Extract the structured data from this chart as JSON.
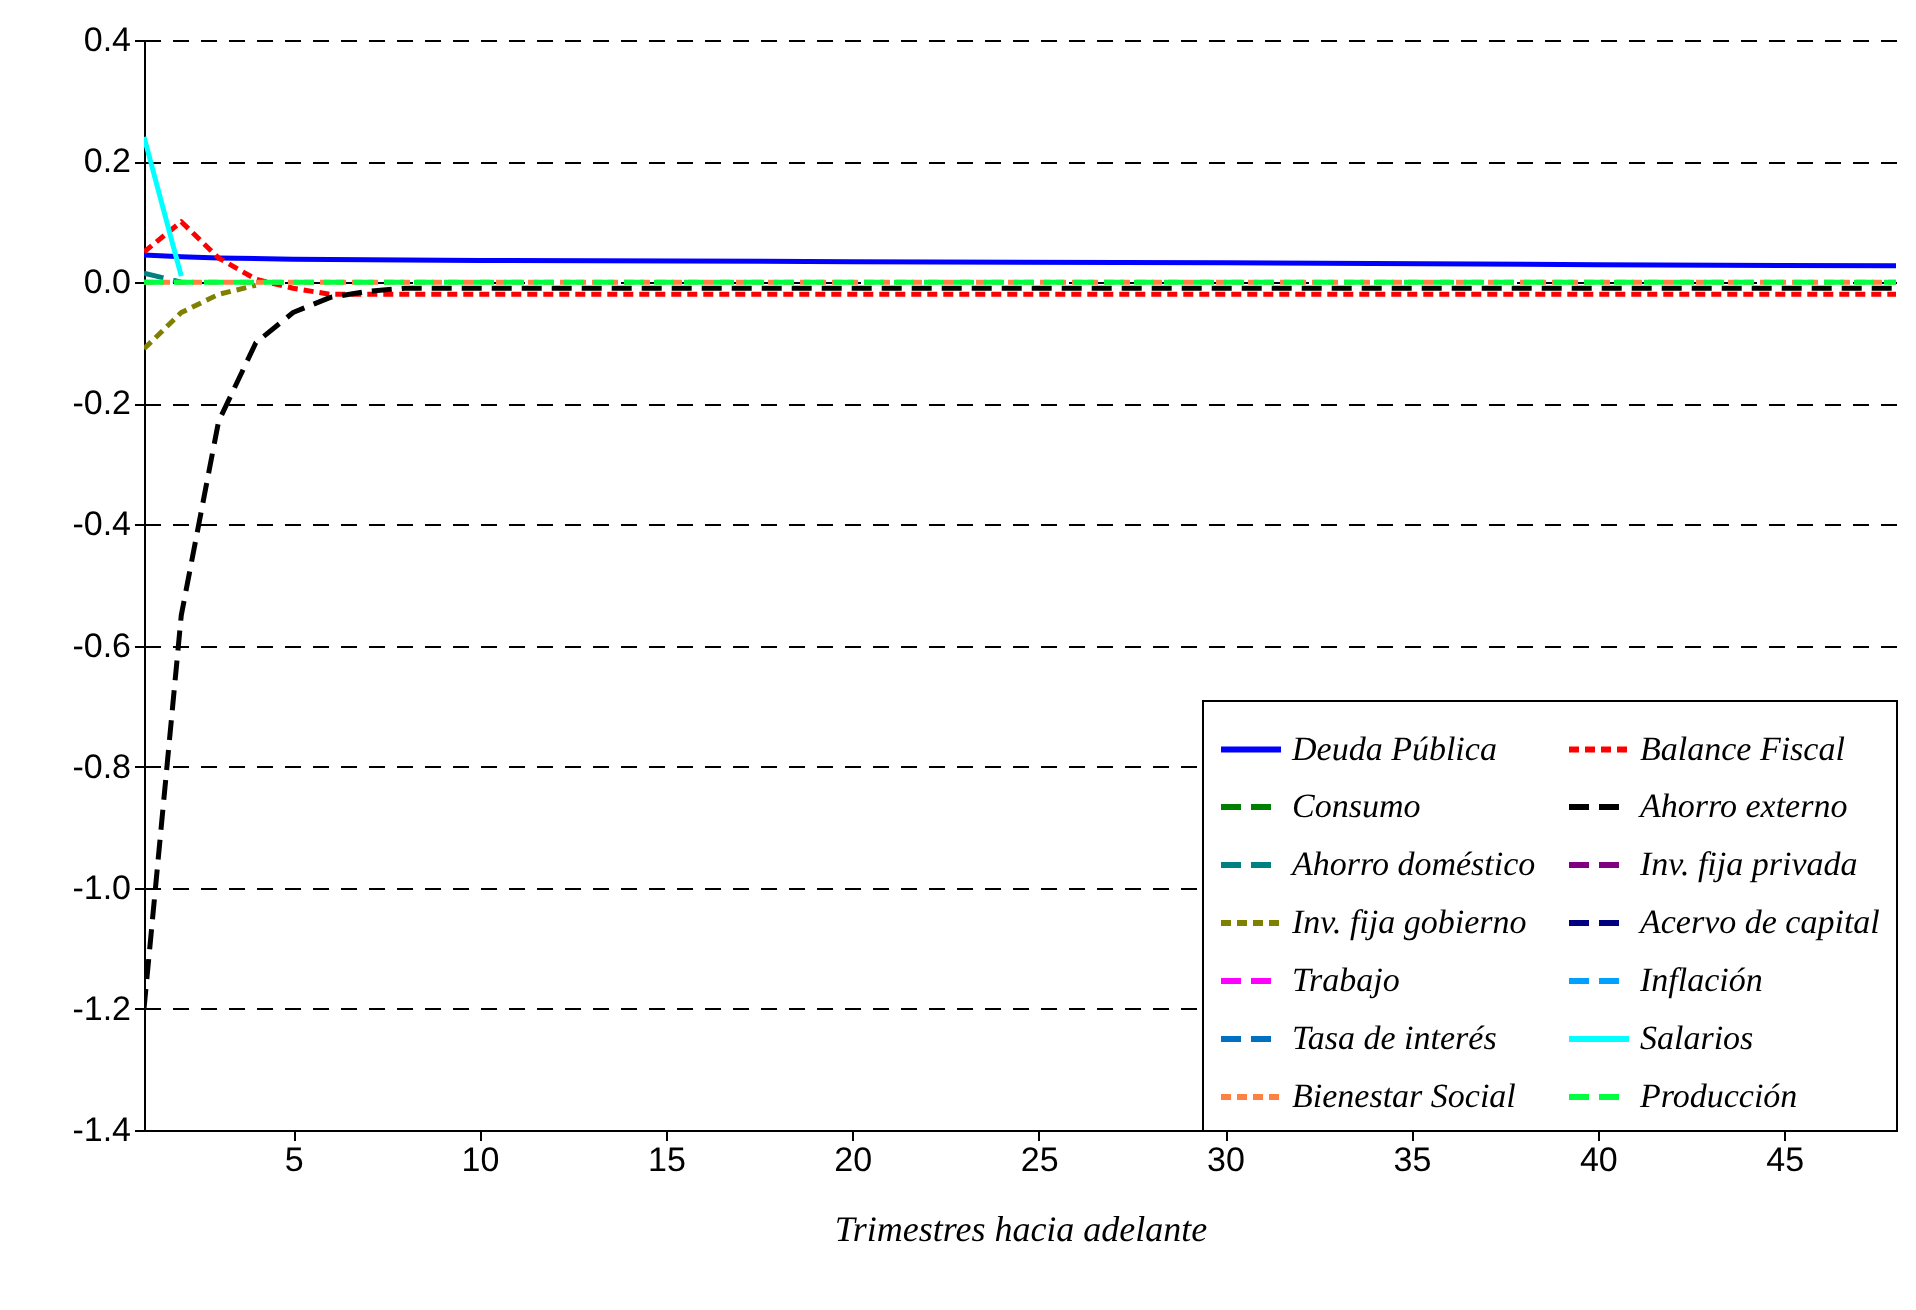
{
  "chart_data": {
    "type": "line",
    "xlabel": "Trimestres hacia adelante",
    "xlim": [
      1,
      48
    ],
    "xticks": [
      5,
      10,
      15,
      20,
      25,
      30,
      35,
      40,
      45
    ],
    "ylim": [
      -1.4,
      0.4
    ],
    "yticks": [
      {
        "value": -1.4,
        "label": "-1.4"
      },
      {
        "value": -1.2,
        "label": "-1.2"
      },
      {
        "value": -1,
        "label": "-1.0"
      },
      {
        "value": -0.8,
        "label": "-0.8"
      },
      {
        "value": -0.6,
        "label": "-0.6"
      },
      {
        "value": -0.4,
        "label": "-0.4"
      },
      {
        "value": -0.2,
        "label": "-0.2"
      },
      {
        "value": 0,
        "label": "0.0"
      },
      {
        "value": 0.2,
        "label": "0.2"
      },
      {
        "value": 0.4,
        "label": "0.4"
      }
    ],
    "grid": "y",
    "legend": "bottom right",
    "series": [
      {
        "name": "Deuda Pública",
        "color": "#0000ff",
        "line_style": "solid",
        "x": [
          1,
          2,
          3,
          5,
          10,
          20,
          30,
          40,
          48
        ],
        "values": [
          0.045,
          0.042,
          0.04,
          0.038,
          0.036,
          0.034,
          0.032,
          0.029,
          0.027
        ]
      },
      {
        "name": "Balance Fiscal",
        "color": "#ff0000",
        "line_style": "dotted",
        "x": [
          1,
          2,
          3,
          4,
          5,
          6,
          48
        ],
        "values": [
          0.05,
          0.1,
          0.04,
          0.005,
          -0.01,
          -0.02,
          -0.02
        ]
      },
      {
        "name": "Consumo",
        "color": "#008000",
        "line_style": "dashed"
      },
      {
        "name": "Ahorro externo",
        "color": "#000000",
        "line_style": "dashed",
        "x": [
          1,
          2,
          3,
          4,
          5,
          6,
          7,
          8,
          48
        ],
        "values": [
          -1.2,
          -0.55,
          -0.23,
          -0.1,
          -0.05,
          -0.025,
          -0.015,
          -0.01,
          -0.01
        ]
      },
      {
        "name": "Ahorro doméstico",
        "color": "#008080",
        "line_style": "dashed",
        "x": [
          1,
          2
        ],
        "values": [
          0.015,
          0
        ]
      },
      {
        "name": "Inv. fija privada",
        "color": "#800080",
        "line_style": "dashed"
      },
      {
        "name": "Inv. fija gobierno",
        "color": "#808000",
        "line_style": "dotted",
        "x": [
          1,
          2,
          3,
          4
        ],
        "values": [
          -0.11,
          -0.05,
          -0.02,
          -0.005
        ]
      },
      {
        "name": "Acervo de capital",
        "color": "#000080",
        "line_style": "dashed"
      },
      {
        "name": "Trabajo",
        "color": "#ff00ff",
        "line_style": "dashed"
      },
      {
        "name": "Inflación",
        "color": "#00a0ff",
        "line_style": "dashed"
      },
      {
        "name": "Tasa de interés",
        "color": "#0070c0",
        "line_style": "dashed"
      },
      {
        "name": "Salarios",
        "color": "#00ffff",
        "line_style": "solid",
        "x": [
          1,
          2
        ],
        "values": [
          0.24,
          0.01
        ]
      },
      {
        "name": "Bienestar Social",
        "color": "#ff8040",
        "line_style": "dotted",
        "x": [
          1,
          48
        ],
        "values": [
          0,
          0
        ]
      },
      {
        "name": "Producción",
        "color": "#00ff40",
        "line_style": "dashed",
        "x": [
          1,
          48
        ],
        "values": [
          0,
          0
        ]
      }
    ]
  }
}
